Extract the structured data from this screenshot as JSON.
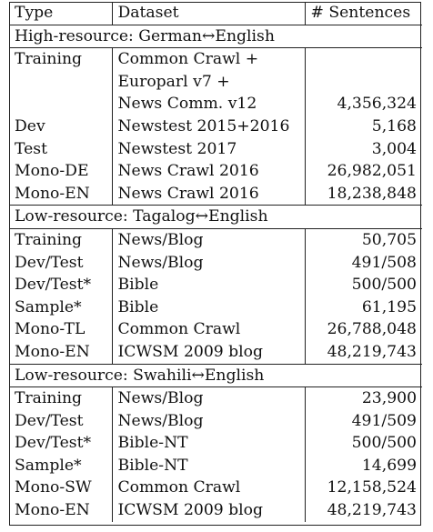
{
  "header": {
    "type": "Type",
    "dataset": "Dataset",
    "sentences": "# Sentences"
  },
  "sections": [
    {
      "title": "High-resource: German↔English",
      "rows": [
        {
          "type": "Training",
          "dataset_lines": [
            "Common Crawl +",
            "Europarl v7 +",
            "News Comm. v12"
          ],
          "sentences": "4,356,324"
        },
        {
          "type": "Dev",
          "dataset_lines": [
            "Newstest 2015+2016"
          ],
          "sentences": "5,168"
        },
        {
          "type": "Test",
          "dataset_lines": [
            "Newstest 2017"
          ],
          "sentences": "3,004"
        },
        {
          "type": "Mono-DE",
          "dataset_lines": [
            "News Crawl 2016"
          ],
          "sentences": "26,982,051"
        },
        {
          "type": "Mono-EN",
          "dataset_lines": [
            "News Crawl 2016"
          ],
          "sentences": "18,238,848"
        }
      ]
    },
    {
      "title": "Low-resource: Tagalog↔English",
      "rows": [
        {
          "type": "Training",
          "dataset_lines": [
            "News/Blog"
          ],
          "sentences": "50,705"
        },
        {
          "type": "Dev/Test",
          "dataset_lines": [
            "News/Blog"
          ],
          "sentences": "491/508"
        },
        {
          "type": "Dev/Test*",
          "dataset_lines": [
            "Bible"
          ],
          "sentences": "500/500"
        },
        {
          "type": "Sample*",
          "dataset_lines": [
            "Bible"
          ],
          "sentences": "61,195"
        },
        {
          "type": "Mono-TL",
          "dataset_lines": [
            "Common Crawl"
          ],
          "sentences": "26,788,048"
        },
        {
          "type": "Mono-EN",
          "dataset_lines": [
            "ICWSM 2009 blog"
          ],
          "sentences": "48,219,743"
        }
      ]
    },
    {
      "title": "Low-resource: Swahili↔English",
      "rows": [
        {
          "type": "Training",
          "dataset_lines": [
            "News/Blog"
          ],
          "sentences": "23,900"
        },
        {
          "type": "Dev/Test",
          "dataset_lines": [
            "News/Blog"
          ],
          "sentences": "491/509"
        },
        {
          "type": "Dev/Test*",
          "dataset_lines": [
            "Bible-NT"
          ],
          "sentences": "500/500"
        },
        {
          "type": "Sample*",
          "dataset_lines": [
            "Bible-NT"
          ],
          "sentences": "14,699"
        },
        {
          "type": "Mono-SW",
          "dataset_lines": [
            "Common Crawl"
          ],
          "sentences": "12,158,524"
        },
        {
          "type": "Mono-EN",
          "dataset_lines": [
            "ICWSM 2009 blog"
          ],
          "sentences": "48,219,743"
        }
      ]
    }
  ]
}
